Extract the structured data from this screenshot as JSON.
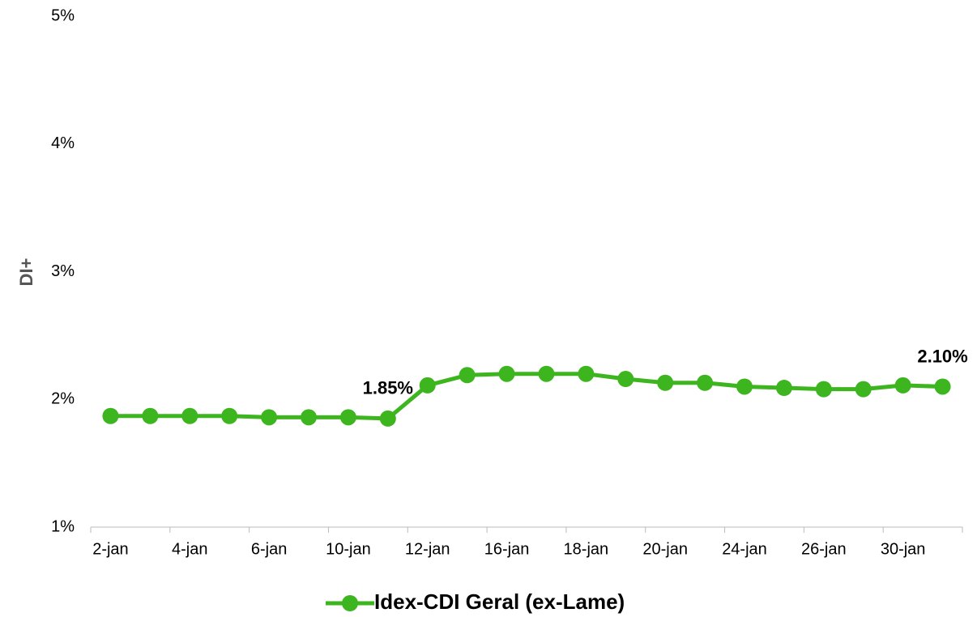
{
  "chart_data": {
    "type": "line",
    "y_label": "DI+",
    "categories": [
      "2-jan",
      null,
      "4-jan",
      null,
      "6-jan",
      null,
      "10-jan",
      null,
      "12-jan",
      null,
      "16-jan",
      null,
      "18-jan",
      null,
      "20-jan",
      null,
      "24-jan",
      null,
      "26-jan",
      null,
      "30-jan",
      null
    ],
    "series": [
      {
        "name": "Idex-CDI Geral (ex-Lame)",
        "color": "#3db51f",
        "values": [
          1.87,
          1.87,
          1.87,
          1.87,
          1.86,
          1.86,
          1.86,
          1.85,
          2.11,
          2.19,
          2.2,
          2.2,
          2.2,
          2.16,
          2.13,
          2.13,
          2.1,
          2.09,
          2.08,
          2.08,
          2.11,
          2.1
        ],
        "value_labels": [
          null,
          null,
          null,
          null,
          null,
          null,
          null,
          "1.85%",
          null,
          null,
          null,
          null,
          null,
          null,
          null,
          null,
          null,
          null,
          null,
          null,
          null,
          "2.10%"
        ]
      }
    ],
    "ylim": [
      1,
      5
    ],
    "yticks": [
      {
        "value": 1,
        "label": "1%"
      },
      {
        "value": 2,
        "label": "2%"
      },
      {
        "value": 3,
        "label": "3%"
      },
      {
        "value": 4,
        "label": "4%"
      },
      {
        "value": 5,
        "label": "5%"
      }
    ],
    "grid": false,
    "legend": "bottom"
  }
}
